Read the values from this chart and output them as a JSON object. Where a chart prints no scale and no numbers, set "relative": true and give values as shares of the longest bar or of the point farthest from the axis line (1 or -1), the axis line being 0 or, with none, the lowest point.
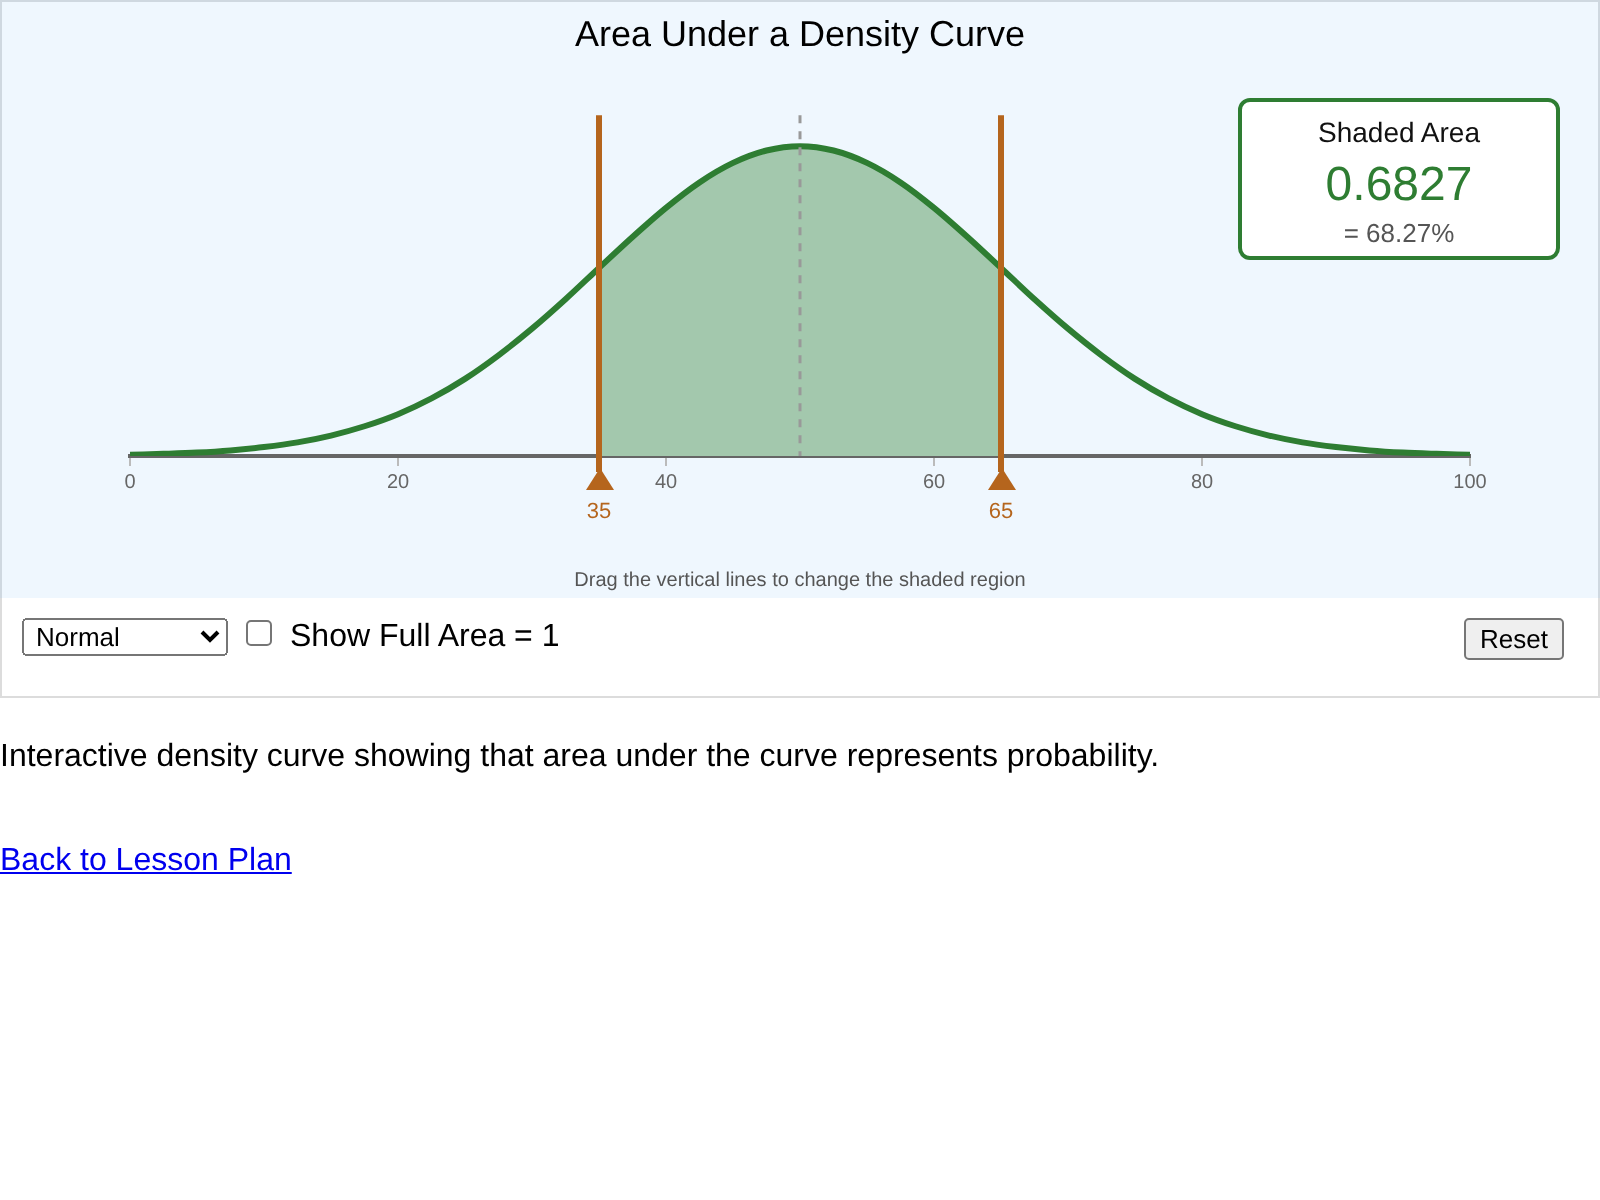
{
  "chart_data": {
    "type": "line",
    "title": "Area Under a Density Curve",
    "relative": true,
    "x": [
      0,
      2.5,
      5,
      7.5,
      10,
      12.5,
      15,
      17.5,
      20,
      22.5,
      25,
      27.5,
      30,
      32.5,
      35,
      37.5,
      40,
      42.5,
      45,
      47.5,
      50,
      52.5,
      55,
      57.5,
      60,
      62.5,
      65,
      67.5,
      70,
      72.5,
      75,
      77.5,
      80,
      82.5,
      85,
      87.5,
      90,
      92.5,
      95,
      97.5,
      100
    ],
    "series": [
      {
        "type": "line",
        "color": "#2e7d32",
        "values": [
          0.004,
          0.007,
          0.011,
          0.018,
          0.029,
          0.044,
          0.066,
          0.096,
          0.135,
          0.186,
          0.249,
          0.325,
          0.411,
          0.506,
          0.607,
          0.707,
          0.801,
          0.883,
          0.946,
          0.986,
          1,
          0.986,
          0.946,
          0.883,
          0.801,
          0.707,
          0.607,
          0.506,
          0.411,
          0.325,
          0.249,
          0.186,
          0.135,
          0.096,
          0.066,
          0.044,
          0.029,
          0.018,
          0.011,
          0.007,
          0.004
        ]
      },
      {
        "type": "area",
        "color": "#a3c8ad",
        "x": [
          35,
          37.5,
          40,
          42.5,
          45,
          47.5,
          50,
          52.5,
          55,
          57.5,
          60,
          62.5,
          65
        ],
        "values": [
          0.607,
          0.707,
          0.801,
          0.883,
          0.946,
          0.986,
          1,
          0.986,
          0.946,
          0.883,
          0.801,
          0.707,
          0.607
        ]
      }
    ],
    "xlim": [
      0,
      100
    ],
    "xticks": [
      0,
      20,
      40,
      60,
      80,
      100
    ],
    "tick_labels": "x",
    "marker": "none",
    "ref_lines": [
      {
        "axis": "x",
        "value": 50,
        "color": "#999999",
        "line_style": "dashed"
      },
      {
        "axis": "x",
        "value": 35,
        "label": "35",
        "color": "#b5651d"
      },
      {
        "axis": "x",
        "value": 65,
        "label": "65",
        "color": "#b5651d"
      }
    ],
    "annotations": [
      "Shaded Area",
      "0.6827",
      "= 68.27%",
      "Drag the vertical lines to change the shaded region",
      "Normal",
      "Show Full Area = 1",
      "Reset",
      "Interactive density curve showing that area under the curve represents probability.",
      "Back to Lesson Plan"
    ]
  }
}
